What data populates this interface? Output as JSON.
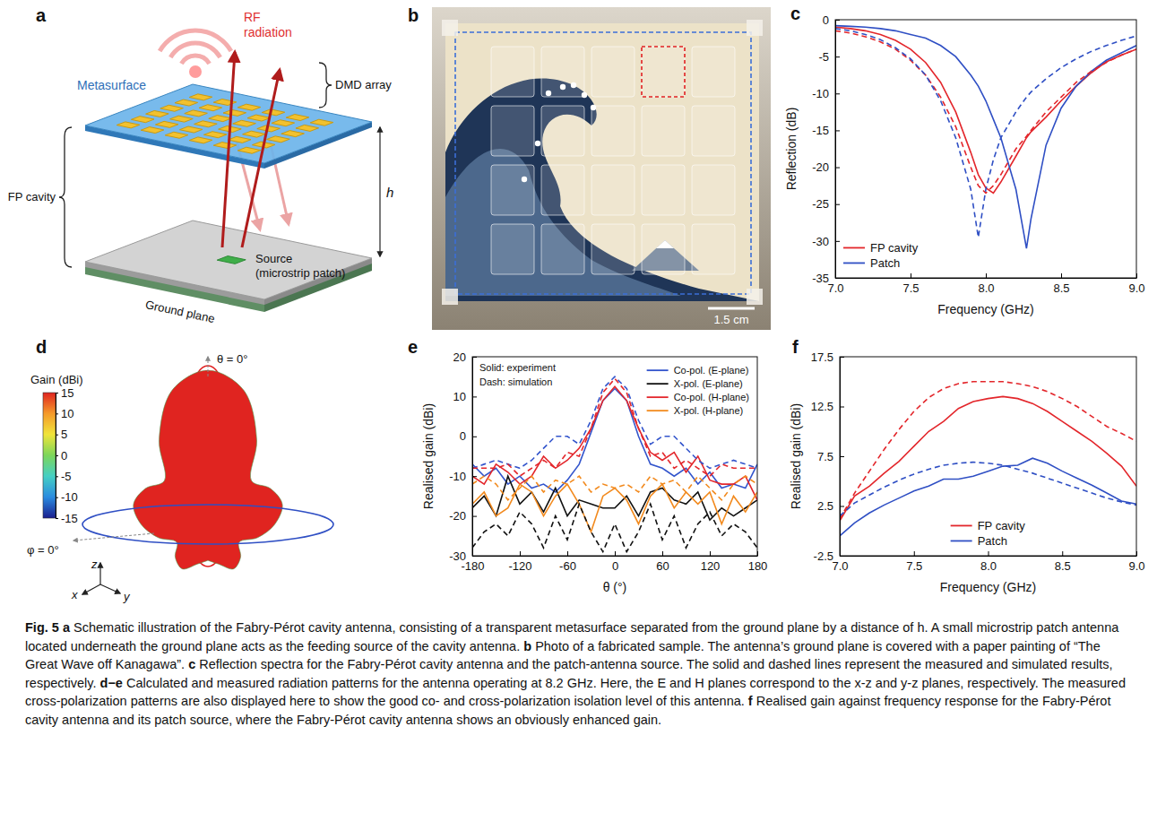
{
  "panels": {
    "a": {
      "panel_label": "a",
      "labels": {
        "rf_radiation": "RF radiation",
        "metasurface": "Metasurface",
        "dmd_array": "DMD array",
        "fp_cavity": "FP cavity",
        "source": "Source",
        "source_detail": "(microstrip patch)",
        "ground_plane": "Ground plane",
        "height": "h"
      }
    },
    "b": {
      "panel_label": "b",
      "scale_bar": "1.5 cm"
    }
  },
  "chart_data": [
    {
      "panel_label": "c",
      "type": "line",
      "x": [
        7.0,
        7.1,
        7.2,
        7.3,
        7.4,
        7.5,
        7.6,
        7.7,
        7.8,
        7.9,
        7.95,
        8.0,
        8.05,
        8.1,
        8.2,
        8.27,
        8.3,
        8.4,
        8.5,
        8.6,
        8.7,
        8.8,
        8.9,
        9.0
      ],
      "xlim": [
        7.0,
        9.0
      ],
      "xticks": [
        {
          "value": 7,
          "label": "7.0"
        },
        7.5,
        {
          "value": 8,
          "label": "8.0"
        },
        8.5,
        {
          "value": 9,
          "label": "9.0"
        }
      ],
      "ylim": [
        -35,
        0
      ],
      "yticks": [
        -35,
        -30,
        -25,
        -20,
        -15,
        -10,
        -5,
        0
      ],
      "x_label": "Frequency (GHz)",
      "y_label": "Reflection (dB)",
      "grid": false,
      "legend": "lower left",
      "series": [
        {
          "name": "FP cavity",
          "color": "#e3262b",
          "line_style": "solid",
          "values": [
            -1,
            -1.2,
            -1.5,
            -2,
            -2.8,
            -4,
            -5.8,
            -8.5,
            -12.5,
            -18,
            -21,
            -22.8,
            -23.5,
            -22,
            -18.5,
            -16,
            -15.2,
            -13.2,
            -11,
            -9,
            -7.2,
            -5.7,
            -4.8,
            -4
          ]
        },
        {
          "name": "Patch",
          "color": "#2f4fc4",
          "line_style": "solid",
          "values": [
            -0.8,
            -0.9,
            -1,
            -1.2,
            -1.5,
            -2,
            -2.5,
            -3.5,
            -5,
            -7.5,
            -9,
            -11,
            -13.5,
            -16,
            -23,
            -31,
            -27,
            -17,
            -12,
            -9,
            -7,
            -5.5,
            -4.5,
            -3.5
          ]
        },
        {
          "color": "#e3262b",
          "line_style": "dashed",
          "values": [
            -1.5,
            -1.8,
            -2.3,
            -3,
            -4,
            -5.5,
            -7.5,
            -10.5,
            -14.5,
            -20,
            -22.5,
            -23.5,
            -22.5,
            -21,
            -17.5,
            -15.8,
            -15,
            -12.5,
            -10.5,
            -8.5,
            -7,
            -5.8,
            -4.8,
            -4
          ]
        },
        {
          "color": "#2f4fc4",
          "line_style": "dashed",
          "values": [
            -1.2,
            -1.5,
            -2,
            -2.7,
            -3.8,
            -5.3,
            -7.5,
            -11,
            -16,
            -23,
            -29.5,
            -23,
            -19,
            -16,
            -12.5,
            -10.5,
            -9.8,
            -8,
            -6.5,
            -5.3,
            -4.3,
            -3.5,
            -2.8,
            -2.2
          ]
        }
      ]
    },
    {
      "panel_label": "d",
      "type": "radiation_pattern",
      "x": [
        -180,
        -165,
        -150,
        -135,
        -120,
        -105,
        -90,
        -75,
        -60,
        -45,
        -30,
        -15,
        0,
        15,
        30,
        45,
        60,
        75,
        90,
        105,
        120,
        135,
        150,
        165,
        180
      ],
      "values": [
        -8,
        -7,
        -5,
        -6,
        -8,
        -5,
        -2,
        0,
        -1,
        -3,
        4,
        12,
        15,
        12,
        4,
        -3,
        -1,
        0,
        -2,
        -5,
        -8,
        -6,
        -5,
        -7,
        -8
      ],
      "colorbar": {
        "title": "Gain (dBi)",
        "range": [
          -15,
          15
        ],
        "ticks": [
          -15,
          -10,
          -5,
          0,
          5,
          10,
          15
        ]
      },
      "annotations": [
        "θ = 0°",
        "φ = 0°"
      ],
      "axis_names": [
        "x",
        "y",
        "z"
      ]
    },
    {
      "panel_label": "e",
      "type": "line",
      "x": [
        -180,
        -165,
        -150,
        -135,
        -120,
        -105,
        -90,
        -75,
        -60,
        -45,
        -30,
        -15,
        0,
        15,
        30,
        45,
        60,
        75,
        90,
        105,
        120,
        135,
        150,
        165,
        180
      ],
      "xlim": [
        -180,
        180
      ],
      "xticks": [
        -180,
        -120,
        -60,
        0,
        60,
        120,
        180
      ],
      "ylim": [
        -30,
        20
      ],
      "yticks": [
        -30,
        -20,
        -10,
        0,
        10,
        20
      ],
      "x_label": "θ (°)",
      "y_label": "Realised gain (dBi)",
      "annotations": [
        "Solid: experiment",
        "Dash: simulation"
      ],
      "grid": false,
      "legend": "upper right",
      "series": [
        {
          "name": "Co-pol. (E-plane)",
          "color": "#3355cc",
          "line_style": "solid",
          "values": [
            -7,
            -10,
            -8,
            -12,
            -10,
            -13,
            -12,
            -14,
            -11,
            -7,
            1,
            9,
            12,
            9,
            0,
            -7,
            -8,
            -10,
            -8,
            -12,
            -9,
            -13,
            -12,
            -13,
            -7
          ]
        },
        {
          "name": "X-pol. (E-plane)",
          "color": "#111111",
          "line_style": "solid",
          "values": [
            -18,
            -15,
            -20,
            -10,
            -17,
            -14,
            -19,
            -13,
            -20,
            -16,
            -17,
            -18,
            -18,
            -15,
            -20,
            -14,
            -13,
            -16,
            -17,
            -14,
            -21,
            -18,
            -20,
            -18,
            -16
          ]
        },
        {
          "name": "Co-pol. (H-plane)",
          "color": "#e3262b",
          "line_style": "solid",
          "values": [
            -10,
            -12,
            -7,
            -9,
            -12,
            -10,
            -5,
            -8,
            -6,
            -3,
            2,
            9,
            12.5,
            9,
            2,
            -4,
            -6,
            -4,
            -9,
            -5,
            -11,
            -12,
            -12,
            -10,
            -16
          ]
        },
        {
          "name": "X-pol. (H-plane)",
          "color": "#f28a1e",
          "line_style": "solid",
          "values": [
            -17,
            -14,
            -20,
            -18,
            -12,
            -14,
            -20,
            -15,
            -12,
            -17,
            -24,
            -15,
            -13,
            -16,
            -22,
            -15,
            -12,
            -18,
            -14,
            -17,
            -14,
            -22,
            -15,
            -19,
            -14
          ]
        },
        {
          "color": "#3355cc",
          "line_style": "dashed",
          "values": [
            -8,
            -7,
            -6,
            -7,
            -8,
            -6,
            -3,
            0,
            0,
            -2,
            4,
            12,
            15,
            12,
            4,
            -2,
            0,
            0,
            -3,
            -6,
            -8,
            -7,
            -6,
            -7,
            -8
          ]
        },
        {
          "color": "#111111",
          "line_style": "dashed",
          "values": [
            -28,
            -24,
            -22,
            -25,
            -19,
            -22,
            -28,
            -20,
            -26,
            -17,
            -24,
            -29,
            -22,
            -29,
            -24,
            -17,
            -26,
            -20,
            -28,
            -22,
            -19,
            -25,
            -22,
            -24,
            -28
          ]
        },
        {
          "color": "#e3262b",
          "line_style": "dashed",
          "values": [
            -8,
            -8,
            -8,
            -7,
            -10,
            -8,
            -6,
            -8,
            -4,
            -5,
            2,
            11,
            14.5,
            11,
            2,
            -5,
            -4,
            -8,
            -6,
            -8,
            -10,
            -7,
            -8,
            -8,
            -8
          ]
        },
        {
          "color": "#f28a1e",
          "line_style": "dashed",
          "values": [
            -12,
            -10,
            -12,
            -16,
            -13,
            -10,
            -14,
            -11,
            -12,
            -10,
            -14,
            -12,
            -13,
            -12,
            -14,
            -10,
            -12,
            -11,
            -14,
            -10,
            -13,
            -16,
            -12,
            -10,
            -12
          ]
        }
      ]
    },
    {
      "panel_label": "f",
      "type": "line",
      "x": [
        7.0,
        7.1,
        7.2,
        7.3,
        7.4,
        7.5,
        7.6,
        7.7,
        7.8,
        7.9,
        8.0,
        8.1,
        8.2,
        8.3,
        8.4,
        8.5,
        8.6,
        8.7,
        8.8,
        8.9,
        9.0
      ],
      "xlim": [
        7.0,
        9.0
      ],
      "xticks": [
        {
          "value": 7,
          "label": "7.0"
        },
        7.5,
        {
          "value": 8,
          "label": "8.0"
        },
        8.5,
        {
          "value": 9,
          "label": "9.0"
        }
      ],
      "ylim": [
        -2.5,
        17.5
      ],
      "yticks": [
        -2.5,
        2.5,
        7.5,
        12.5,
        17.5
      ],
      "x_label": "Frequency (GHz)",
      "y_label": "Realised gain (dBi)",
      "grid": false,
      "legend": "lower center",
      "series": [
        {
          "name": "FP cavity",
          "color": "#e3262b",
          "line_style": "solid",
          "values": [
            1,
            3.5,
            4.5,
            5.8,
            7,
            8.5,
            10,
            11,
            12.3,
            13,
            13.3,
            13.5,
            13.3,
            12.8,
            12,
            11,
            10,
            9,
            7.8,
            6.5,
            4.5
          ]
        },
        {
          "name": "Patch",
          "color": "#2f4fc4",
          "line_style": "solid",
          "values": [
            -0.5,
            0.8,
            1.8,
            2.6,
            3.3,
            4,
            4.5,
            5.2,
            5.2,
            5.5,
            6,
            6.5,
            6.6,
            7.3,
            6.8,
            6,
            5.3,
            4.6,
            3.8,
            3,
            2.7
          ]
        },
        {
          "color": "#e3262b",
          "line_style": "dashed",
          "values": [
            1.2,
            3.8,
            6,
            8.2,
            10.2,
            12,
            13.4,
            14.3,
            14.8,
            15,
            15,
            15,
            14.8,
            14.5,
            14,
            13.3,
            12.5,
            11.5,
            10.5,
            9.8,
            9
          ]
        },
        {
          "color": "#2f4fc4",
          "line_style": "dashed",
          "values": [
            1.5,
            2.8,
            3.6,
            4.4,
            5.1,
            5.7,
            6.2,
            6.6,
            6.8,
            6.9,
            6.8,
            6.6,
            6.2,
            5.8,
            5.3,
            4.8,
            4.3,
            3.8,
            3.3,
            2.9,
            2.6
          ]
        }
      ]
    }
  ],
  "caption": {
    "figure_label": "Fig. 5",
    "items": [
      {
        "label": "a",
        "text": "Schematic illustration of the Fabry-Pérot cavity antenna, consisting of a transparent metasurface separated from the ground plane by a distance of h. A small microstrip patch antenna located underneath the ground plane acts as the feeding source of the cavity antenna."
      },
      {
        "label": "b",
        "text": "Photo of a fabricated sample. The antenna’s ground plane is covered with a paper painting of “The Great Wave off Kanagawa”."
      },
      {
        "label": "c",
        "text": "Reflection spectra for the Fabry-Pérot cavity antenna and the patch-antenna source. The solid and dashed lines represent the measured and simulated results, respectively."
      },
      {
        "label": "d−e",
        "text": "Calculated and measured radiation patterns for the antenna operating at 8.2 GHz. Here, the E and H planes correspond to the x-z and y-z planes, respectively. The measured cross-polarization patterns are also displayed here to show the good co- and cross-polarization isolation level of this antenna."
      },
      {
        "label": "f",
        "text": "Realised gain against frequency response for the Fabry-Pérot cavity antenna and its patch source, where the Fabry-Pérot cavity antenna shows an obviously enhanced gain."
      }
    ]
  }
}
